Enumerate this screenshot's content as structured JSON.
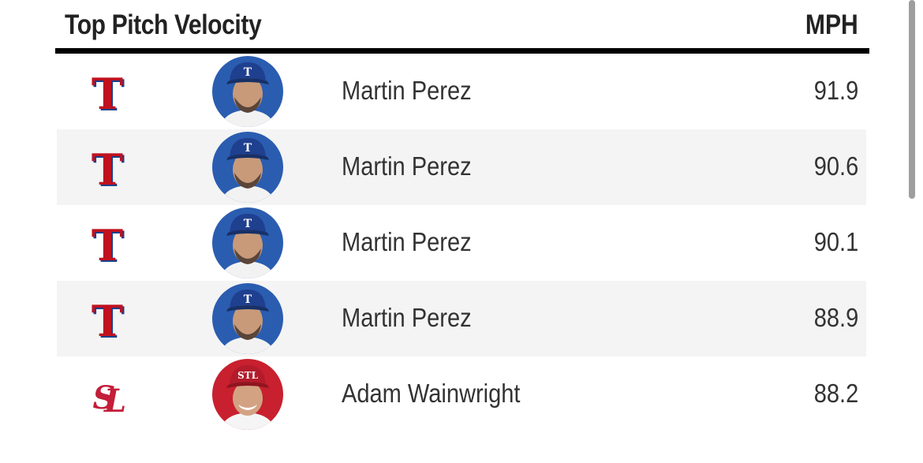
{
  "header": {
    "title": "Top Pitch Velocity",
    "unit_label": "MPH"
  },
  "rows": [
    {
      "team_icon": "rangers-logo-icon",
      "player": "Martin Perez",
      "mph": "91.9",
      "team_color": "#C0111F",
      "cap_color": "#003278"
    },
    {
      "team_icon": "rangers-logo-icon",
      "player": "Martin Perez",
      "mph": "90.6",
      "team_color": "#C0111F",
      "cap_color": "#003278"
    },
    {
      "team_icon": "rangers-logo-icon",
      "player": "Martin Perez",
      "mph": "90.1",
      "team_color": "#C0111F",
      "cap_color": "#003278"
    },
    {
      "team_icon": "rangers-logo-icon",
      "player": "Martin Perez",
      "mph": "88.9",
      "team_color": "#C0111F",
      "cap_color": "#003278"
    },
    {
      "team_icon": "cardinals-logo-icon",
      "player": "Adam Wainwright",
      "mph": "88.2",
      "team_color": "#C41E3A",
      "cap_color": "#C41E3A"
    }
  ]
}
